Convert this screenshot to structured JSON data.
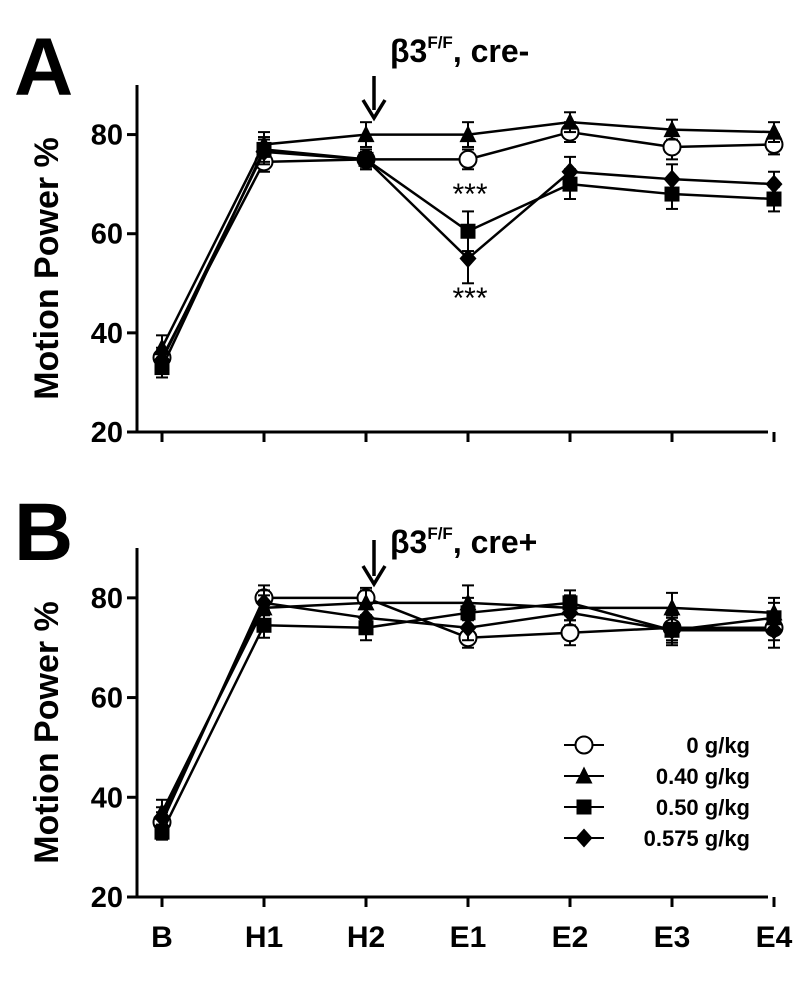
{
  "chart_data": [
    {
      "type": "line",
      "panel_label": "A",
      "title": "β3",
      "title_sup": "F/F",
      "title_suffix": ", cre-",
      "xlabel": "",
      "ylabel": "Motion Power %",
      "categories": [
        "B",
        "H1",
        "H2",
        "E1",
        "E2",
        "E3",
        "E4"
      ],
      "ylim": [
        20,
        90
      ],
      "yticks": [
        20,
        40,
        60,
        80
      ],
      "arrow_at": "H2",
      "series": [
        {
          "name": "0 g/kg",
          "marker": "circle-open",
          "values": [
            35,
            74.5,
            75,
            75,
            80.5,
            77.5,
            78
          ],
          "err": [
            2,
            2,
            1.5,
            2,
            2,
            2.5,
            2
          ]
        },
        {
          "name": "0.40 g/kg",
          "marker": "triangle",
          "values": [
            37,
            78,
            80,
            80,
            82.5,
            81,
            80.5
          ],
          "err": [
            2.5,
            2.5,
            2.5,
            2.5,
            2,
            2,
            2
          ]
        },
        {
          "name": "0.50 g/kg",
          "marker": "square",
          "values": [
            33,
            77,
            75,
            60.5,
            70,
            68,
            67
          ],
          "err": [
            2,
            2.5,
            2,
            4,
            3,
            3,
            2.5
          ]
        },
        {
          "name": "0.575 g/kg",
          "marker": "diamond",
          "values": [
            34.5,
            76.5,
            75,
            55,
            72.5,
            71,
            70
          ],
          "err": [
            2,
            2.5,
            2,
            5,
            3,
            3,
            2.5
          ]
        }
      ],
      "annotations": [
        {
          "text": "***",
          "category": "E1",
          "y": 66
        },
        {
          "text": "***",
          "category": "E1",
          "y": 45
        }
      ]
    },
    {
      "type": "line",
      "panel_label": "B",
      "title": "β3",
      "title_sup": "F/F",
      "title_suffix": ", cre+",
      "xlabel": "",
      "ylabel": "Motion Power %",
      "categories": [
        "B",
        "H1",
        "H2",
        "E1",
        "E2",
        "E3",
        "E4"
      ],
      "ylim": [
        20,
        90
      ],
      "yticks": [
        20,
        40,
        60,
        80
      ],
      "arrow_at": "H2",
      "legend": "bottom-right",
      "series": [
        {
          "name": "0 g/kg",
          "marker": "circle-open",
          "values": [
            35,
            80,
            80,
            72,
            73,
            74,
            74
          ],
          "err": [
            2,
            2.5,
            2,
            2,
            2.5,
            2.5,
            2.5
          ]
        },
        {
          "name": "0.40 g/kg",
          "marker": "triangle",
          "values": [
            37,
            78,
            79,
            79,
            78,
            78,
            77
          ],
          "err": [
            2.5,
            2.5,
            2.5,
            3.5,
            2.5,
            3,
            3
          ]
        },
        {
          "name": "0.50 g/kg",
          "marker": "square",
          "values": [
            33,
            74.5,
            74,
            77,
            79,
            73.5,
            76
          ],
          "err": [
            1.5,
            2.5,
            2.5,
            3,
            2.5,
            3,
            3
          ]
        },
        {
          "name": "0.575 g/kg",
          "marker": "diamond",
          "values": [
            36,
            79,
            76,
            74,
            77,
            73.5,
            73.5
          ],
          "err": [
            2,
            2.5,
            2.5,
            2.5,
            2.5,
            2.5,
            3.5
          ]
        }
      ]
    }
  ]
}
